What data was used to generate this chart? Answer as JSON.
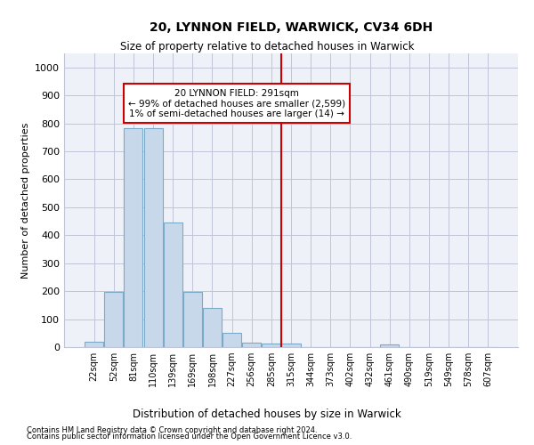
{
  "title": "20, LYNNON FIELD, WARWICK, CV34 6DH",
  "subtitle": "Size of property relative to detached houses in Warwick",
  "xlabel": "Distribution of detached houses by size in Warwick",
  "ylabel": "Number of detached properties",
  "bar_color": "#c8d8eb",
  "bar_edge_color": "#7aaac8",
  "background_color": "#ffffff",
  "plot_bg_color": "#eef1f8",
  "grid_color": "#c0c4d8",
  "vline_color": "#cc0000",
  "annotation_text_line1": "20 LYNNON FIELD: 291sqm",
  "annotation_text_line2": "← 99% of detached houses are smaller (2,599)",
  "annotation_text_line3": "1% of semi-detached houses are larger (14) →",
  "categories": [
    "22sqm",
    "52sqm",
    "81sqm",
    "110sqm",
    "139sqm",
    "169sqm",
    "198sqm",
    "227sqm",
    "256sqm",
    "285sqm",
    "315sqm",
    "344sqm",
    "373sqm",
    "402sqm",
    "432sqm",
    "461sqm",
    "490sqm",
    "519sqm",
    "549sqm",
    "578sqm",
    "607sqm"
  ],
  "bar_heights": [
    20,
    197,
    783,
    783,
    447,
    197,
    140,
    50,
    15,
    12,
    12,
    0,
    0,
    0,
    0,
    10,
    0,
    0,
    0,
    0,
    0
  ],
  "ylim": [
    0,
    1050
  ],
  "yticks": [
    0,
    100,
    200,
    300,
    400,
    500,
    600,
    700,
    800,
    900,
    1000
  ],
  "footnote1": "Contains HM Land Registry data © Crown copyright and database right 2024.",
  "footnote2": "Contains public sector information licensed under the Open Government Licence v3.0."
}
